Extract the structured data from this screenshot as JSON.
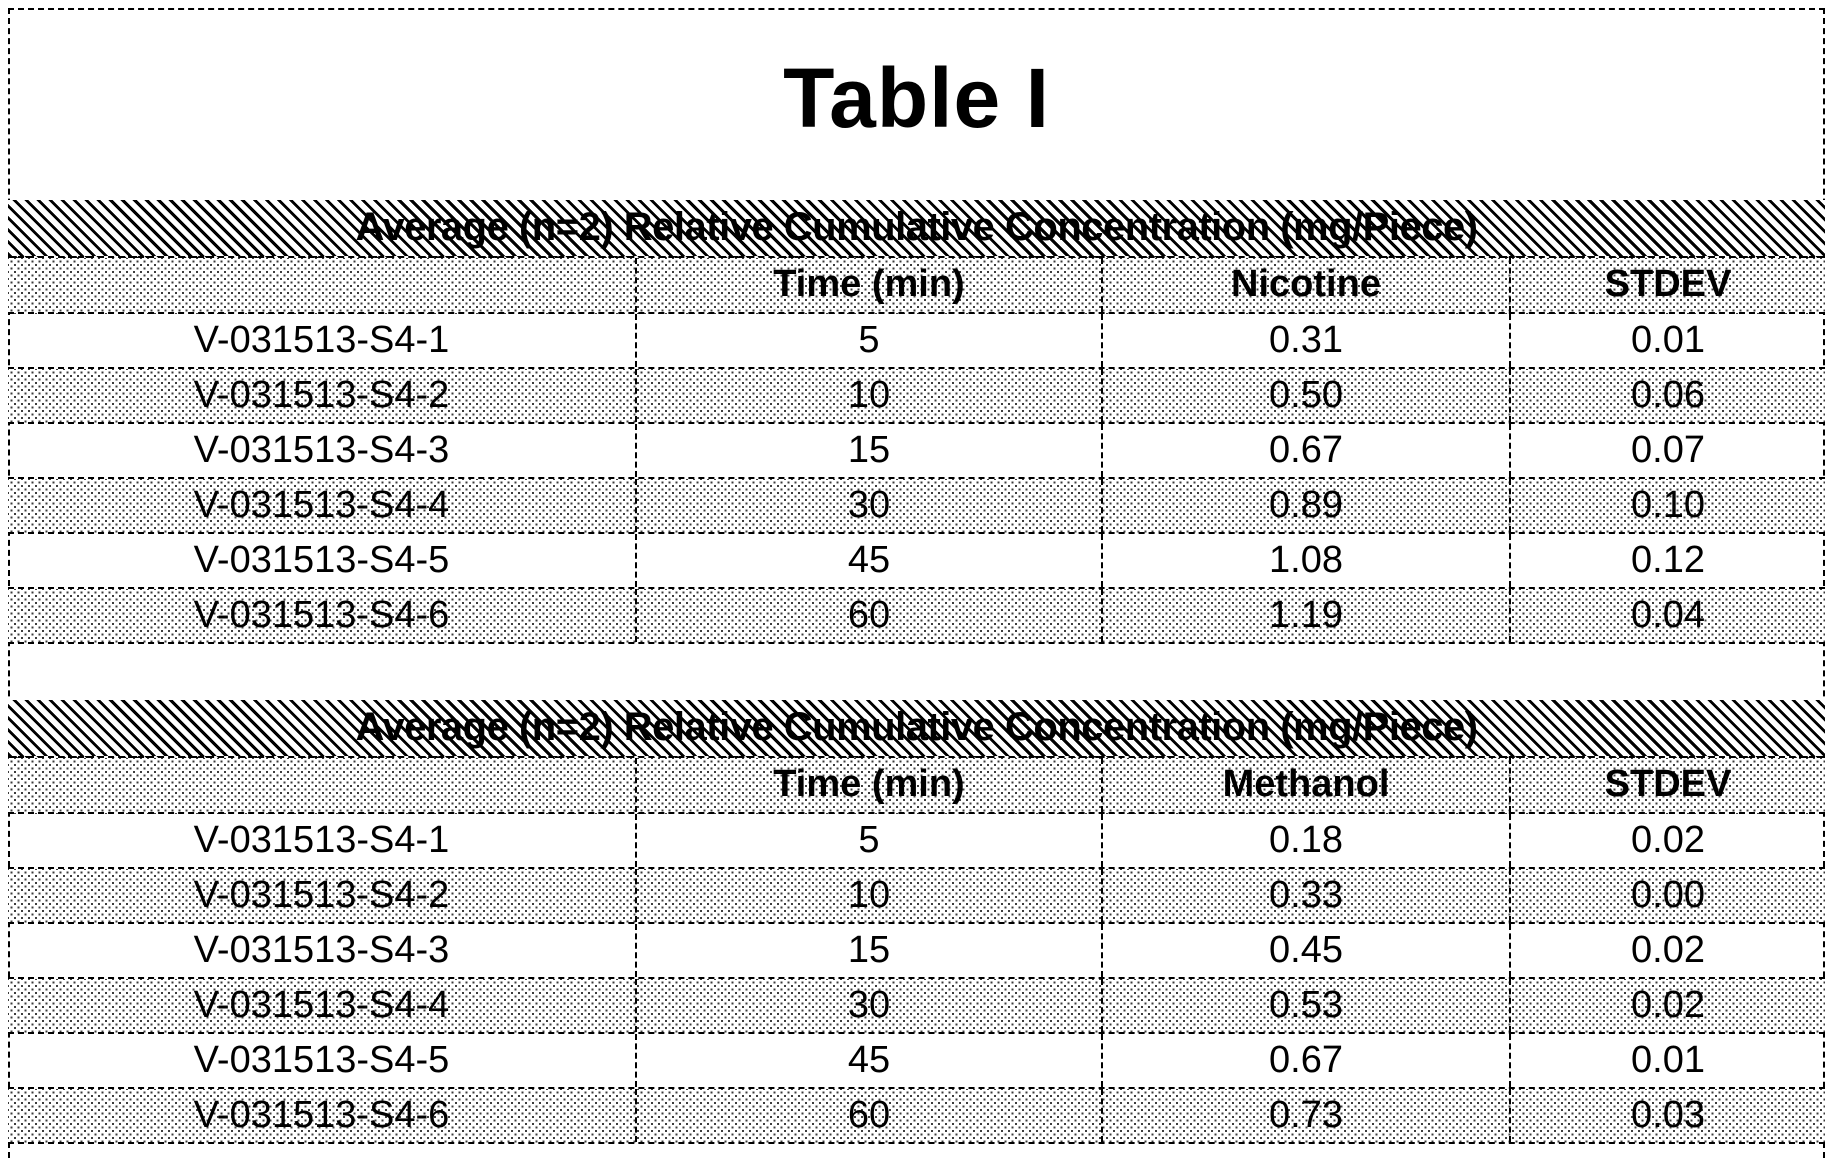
{
  "page_title": "Table I",
  "tables": [
    {
      "band_title": "Average (n=2) Relative Cumulative Concentration (mg/Piece)",
      "columns": {
        "sample": "",
        "time": "Time (min)",
        "analyte": "Nicotine",
        "stdev": "STDEV"
      },
      "rows": [
        {
          "sample": "V-031513-S4-1",
          "time": "5",
          "value": "0.31",
          "stdev": "0.01"
        },
        {
          "sample": "V-031513-S4-2",
          "time": "10",
          "value": "0.50",
          "stdev": "0.06"
        },
        {
          "sample": "V-031513-S4-3",
          "time": "15",
          "value": "0.67",
          "stdev": "0.07"
        },
        {
          "sample": "V-031513-S4-4",
          "time": "30",
          "value": "0.89",
          "stdev": "0.10"
        },
        {
          "sample": "V-031513-S4-5",
          "time": "45",
          "value": "1.08",
          "stdev": "0.12"
        },
        {
          "sample": "V-031513-S4-6",
          "time": "60",
          "value": "1.19",
          "stdev": "0.04"
        }
      ]
    },
    {
      "band_title": "Average (n=2) Relative Cumulative Concentration (mg/Piece)",
      "columns": {
        "sample": "",
        "time": "Time (min)",
        "analyte": "Methanol",
        "stdev": "STDEV"
      },
      "rows": [
        {
          "sample": "V-031513-S4-1",
          "time": "5",
          "value": "0.18",
          "stdev": "0.02"
        },
        {
          "sample": "V-031513-S4-2",
          "time": "10",
          "value": "0.33",
          "stdev": "0.00"
        },
        {
          "sample": "V-031513-S4-3",
          "time": "15",
          "value": "0.45",
          "stdev": "0.02"
        },
        {
          "sample": "V-031513-S4-4",
          "time": "30",
          "value": "0.53",
          "stdev": "0.02"
        },
        {
          "sample": "V-031513-S4-5",
          "time": "45",
          "value": "0.67",
          "stdev": "0.01"
        },
        {
          "sample": "V-031513-S4-6",
          "time": "60",
          "value": "0.73",
          "stdev": "0.03"
        }
      ]
    }
  ],
  "colors": {
    "text": "#000000",
    "background": "#ffffff",
    "hatch": "#000000"
  }
}
